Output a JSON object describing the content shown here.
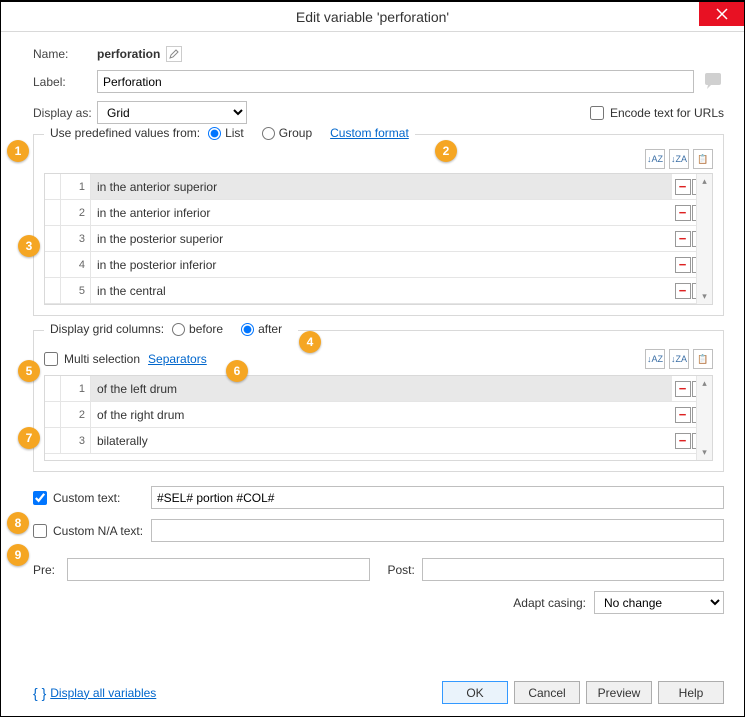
{
  "window": {
    "title": "Edit variable 'perforation'"
  },
  "fields": {
    "name_label": "Name:",
    "name_value": "perforation",
    "label_label": "Label:",
    "label_value": "Perforation",
    "displayas_label": "Display as:",
    "displayas_value": "Grid",
    "encode_label": "Encode text for URLs"
  },
  "predef": {
    "legend": "Use predefined values from:",
    "opt_list": "List",
    "opt_group": "Group",
    "custom_format": "Custom format",
    "rows": [
      {
        "n": "1",
        "text": "in the anterior superior"
      },
      {
        "n": "2",
        "text": "in the anterior inferior"
      },
      {
        "n": "3",
        "text": "in the posterior superior"
      },
      {
        "n": "4",
        "text": "in the posterior inferior"
      },
      {
        "n": "5",
        "text": "in the central"
      }
    ]
  },
  "columns": {
    "legend": "Display grid columns:",
    "opt_before": "before",
    "opt_after": "after",
    "multi_label": "Multi selection",
    "separators": "Separators",
    "rows": [
      {
        "n": "1",
        "text": "of the left drum"
      },
      {
        "n": "2",
        "text": "of the right drum"
      },
      {
        "n": "3",
        "text": "bilaterally"
      }
    ]
  },
  "custom": {
    "customtext_label": "Custom text:",
    "customtext_value": "#SEL# portion #COL#",
    "customna_label": "Custom N/A text:",
    "customna_value": "",
    "pre_label": "Pre:",
    "pre_value": "",
    "post_label": "Post:",
    "post_value": "",
    "casing_label": "Adapt casing:",
    "casing_value": "No change"
  },
  "footer": {
    "display_all": "Display all variables",
    "ok": "OK",
    "cancel": "Cancel",
    "preview": "Preview",
    "help": "Help"
  },
  "sort": {
    "az": "↓AZ",
    "za": "↓ZA",
    "clip": "📋"
  },
  "callouts": {
    "c1": "1",
    "c2": "2",
    "c3": "3",
    "c4": "4",
    "c5": "5",
    "c6": "6",
    "c7": "7",
    "c8": "8",
    "c9": "9"
  },
  "colors": {
    "accent": "#f5a623",
    "close": "#e81123",
    "link": "#0066cc"
  }
}
